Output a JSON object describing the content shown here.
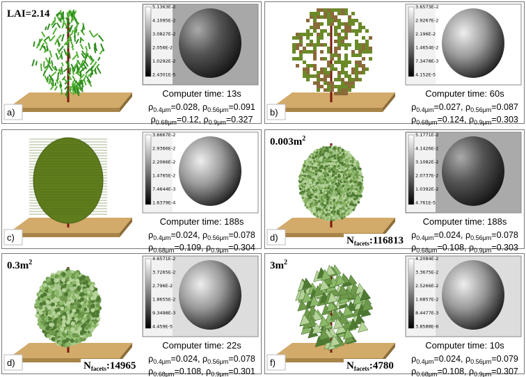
{
  "panels": [
    {
      "label": "a)",
      "note": {
        "text": "LAI=2.14"
      },
      "colorbar_ticks": [
        "5.1363E-2",
        "4.1095E-2",
        "3.0827E-2",
        "2.056E-2",
        "1.0292E-2",
        "2.4301E-5"
      ],
      "time": "Computer time: 13s",
      "line1": [
        {
          "base": "ρ",
          "sub": "0.4μm",
          "rest": "=0.028, "
        },
        {
          "base": "ρ",
          "sub": "0.56μm",
          "rest": "=0.091"
        }
      ],
      "line2": [
        {
          "base": "ρ",
          "sub": "0.68μm",
          "rest": "=0.12, "
        },
        {
          "base": "ρ",
          "sub": "0.9μm",
          "rest": "=0.327"
        }
      ]
    },
    {
      "label": "b)",
      "colorbar_ticks": [
        "3.6573E-2",
        "2.9267E-2",
        "2.196E-2",
        "1.4654E-2",
        "7.3478E-3",
        "4.152E-5"
      ],
      "time": "Computer time: 60s",
      "line1": [
        {
          "base": "ρ",
          "sub": "0.4μm",
          "rest": "=0.027, "
        },
        {
          "base": "ρ",
          "sub": "0.56μm",
          "rest": "=0.087"
        }
      ],
      "line2": [
        {
          "base": "ρ",
          "sub": "0.68μm",
          "rest": "=0.124, "
        },
        {
          "base": "ρ",
          "sub": "0.9μm",
          "rest": "=0.303"
        }
      ]
    },
    {
      "label": "c)",
      "colorbar_ticks": [
        "3.6667E-2",
        "2.9366E-2",
        "2.2066E-2",
        "1.4765E-2",
        "7.4644E-3",
        "1.6379E-4"
      ],
      "time": "Computer time: 188s",
      "line1": [
        {
          "base": "ρ",
          "sub": "0.4μm",
          "rest": "=0.024, "
        },
        {
          "base": "ρ",
          "sub": "0.56μm",
          "rest": "=0.078"
        }
      ],
      "line2": [
        {
          "base": "ρ",
          "sub": "0.68μm",
          "rest": "=0.109, "
        },
        {
          "base": "ρ",
          "sub": "0.9μm",
          "rest": "=0.304"
        }
      ]
    },
    {
      "label": "d)",
      "note": {
        "text": "0.003m",
        "sup": "2"
      },
      "facets": {
        "base": "N",
        "sub": "facets",
        "rest": ":116813"
      },
      "colorbar_ticks": [
        "5.1771E-2",
        "4.1426E-2",
        "3.1082E-2",
        "2.0737E-2",
        "1.0392E-2",
        "4.761E-5"
      ],
      "time": "Computer time: 188s",
      "line1": [
        {
          "base": "ρ",
          "sub": "0.4μm",
          "rest": "=0.024, "
        },
        {
          "base": "ρ",
          "sub": "0.56μm",
          "rest": "=0.078"
        }
      ],
      "line2": [
        {
          "base": "ρ",
          "sub": "0.68μm",
          "rest": "=0.108, "
        },
        {
          "base": "ρ",
          "sub": "0.9μm",
          "rest": "=0.303"
        }
      ]
    },
    {
      "label": "d)",
      "note": {
        "text": "0.3m",
        "sup": "2"
      },
      "facets": {
        "base": "N",
        "sub": "facets",
        "rest": ":14965"
      },
      "colorbar_ticks": [
        "4.6571E-2",
        "3.7265E-2",
        "2.796E-2",
        "1.8655E-2",
        "9.3498E-3",
        "4.459E-5"
      ],
      "time": "Computer time: 22s",
      "line1": [
        {
          "base": "ρ",
          "sub": "0.4μm",
          "rest": "=0.024, "
        },
        {
          "base": "ρ",
          "sub": "0.56μm",
          "rest": "=0.078"
        }
      ],
      "line2": [
        {
          "base": "ρ",
          "sub": "0.68μm",
          "rest": "=0.108, "
        },
        {
          "base": "ρ",
          "sub": "0.9μm",
          "rest": "=0.301"
        }
      ]
    },
    {
      "label": "f)",
      "note": {
        "text": "3m",
        "sup": "2"
      },
      "facets": {
        "base": "N",
        "sub": "facets",
        "rest": ":4780"
      },
      "colorbar_ticks": [
        "4.2084E-2",
        "3.3675E-2",
        "2.5266E-2",
        "1.6857E-2",
        "8.4477E-3",
        "3.8588E-6"
      ],
      "time": "Computer time: 10s",
      "line1": [
        {
          "base": "ρ",
          "sub": "0.4μm",
          "rest": "=0.024, "
        },
        {
          "base": "ρ",
          "sub": "0.56μm",
          "rest": "=0.079"
        }
      ],
      "line2": [
        {
          "base": "ρ",
          "sub": "0.68μm",
          "rest": "=0.108, "
        },
        {
          "base": "ρ",
          "sub": "0.9μm",
          "rest": "=0.307"
        }
      ]
    }
  ]
}
